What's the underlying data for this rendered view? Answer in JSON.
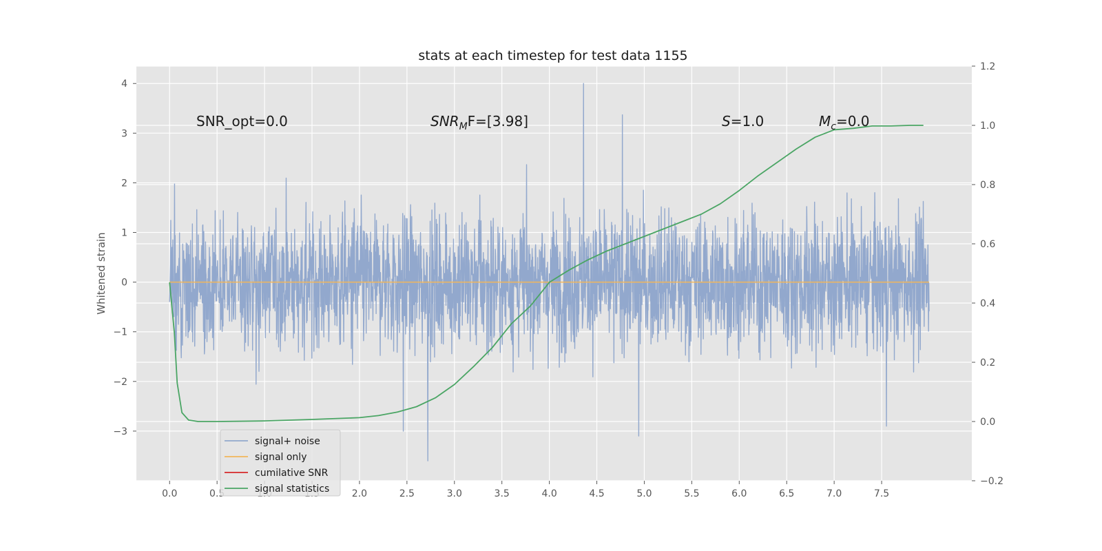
{
  "chart_data": {
    "type": "line",
    "title": "stats at each timestep for test data 1155",
    "ylabel": "Whitened strain",
    "xlim": [
      -0.35,
      8.45
    ],
    "ylim": [
      -4.0,
      4.35
    ],
    "y2lim": [
      -0.2,
      1.2
    ],
    "xticks": [
      "0.0",
      "0.5",
      "1.0",
      "1.5",
      "2.0",
      "2.5",
      "3.0",
      "3.5",
      "4.0",
      "4.5",
      "5.0",
      "5.5",
      "6.0",
      "6.5",
      "7.0",
      "7.5"
    ],
    "yticks": [
      "4",
      "3",
      "2",
      "1",
      "0",
      "−1",
      "−2",
      "−3"
    ],
    "y2ticks": [
      "1.2",
      "1.0",
      "0.8",
      "0.6",
      "0.4",
      "0.2",
      "0.0",
      "−0.2"
    ],
    "annotations": {
      "snr_opt": "SNR_opt=0.0",
      "snr_mf_main": "SNR",
      "snr_mf_sub": "M",
      "snr_mf_rest": "F=[3.98]",
      "s_var": "S",
      "s_rest": "=1.0",
      "mc_var": "M",
      "mc_sub": "c",
      "mc_rest": "=0.0"
    },
    "legend": {
      "placement": "lower-left",
      "entries": [
        "signal+ noise",
        "signal only",
        "cumilative SNR",
        "signal statistics"
      ]
    },
    "colors": {
      "signal_noise": "#92a8cd",
      "signal_only": "#f2b65a",
      "cumulative_snr": "#d62728",
      "signal_statistics": "#4aa564",
      "axes_bg": "#e5e5e5",
      "grid": "#ffffff"
    },
    "series": [
      {
        "name": "signal+ noise",
        "axis": "left",
        "note_values": "dense noise from x=0.0 to 8.0, amplitude mostly within -2.2..2.3, spikes up to 4.0 near x=4.36 and down to -3.6 near x=2.72",
        "x_range": [
          0.0,
          8.0
        ],
        "peaks": [
          [
            4.36,
            4.0
          ],
          [
            4.77,
            3.37
          ],
          [
            2.72,
            -3.6
          ],
          [
            4.94,
            -3.1
          ],
          [
            2.46,
            -3.0
          ],
          [
            7.55,
            -2.9
          ]
        ]
      },
      {
        "name": "signal only",
        "axis": "left",
        "x": [
          0.0,
          8.0
        ],
        "y": [
          0.0,
          0.0
        ]
      },
      {
        "name": "signal statistics",
        "axis": "right",
        "x": [
          0.0,
          0.05,
          0.08,
          0.13,
          0.2,
          0.3,
          0.5,
          1.0,
          1.5,
          2.0,
          2.2,
          2.4,
          2.6,
          2.8,
          3.0,
          3.2,
          3.4,
          3.6,
          3.8,
          4.0,
          4.2,
          4.4,
          4.6,
          4.8,
          5.0,
          5.2,
          5.4,
          5.6,
          5.8,
          6.0,
          6.2,
          6.4,
          6.6,
          6.8,
          7.0,
          7.2,
          7.4,
          7.6,
          7.8,
          7.94
        ],
        "y": [
          0.47,
          0.3,
          0.13,
          0.03,
          0.005,
          0.0,
          0.0,
          0.002,
          0.007,
          0.013,
          0.02,
          0.032,
          0.05,
          0.08,
          0.125,
          0.185,
          0.25,
          0.33,
          0.39,
          0.47,
          0.51,
          0.545,
          0.575,
          0.6,
          0.625,
          0.65,
          0.675,
          0.7,
          0.735,
          0.78,
          0.83,
          0.875,
          0.92,
          0.96,
          0.985,
          0.99,
          0.998,
          0.998,
          1.0,
          1.0
        ]
      }
    ]
  }
}
